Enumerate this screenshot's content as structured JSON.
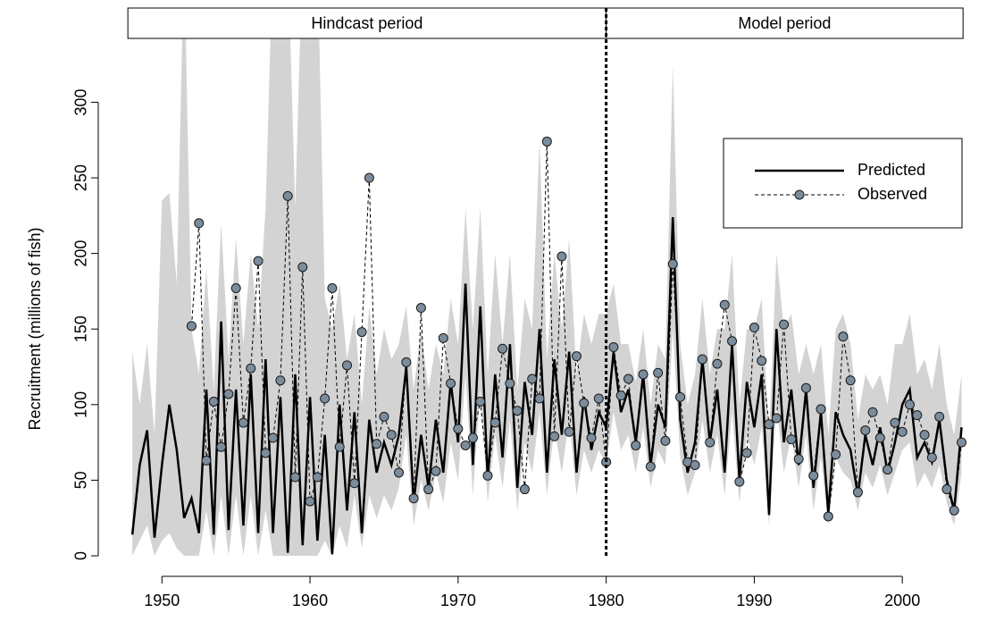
{
  "chart_data": {
    "type": "line",
    "ylabel": "Recruitment (millions of fish)",
    "xlim": [
      1945.7,
      2005.9
    ],
    "ylim": [
      -13.6,
      344
    ],
    "xticks": [
      1950,
      1960,
      1970,
      1980,
      1990,
      2000
    ],
    "yticks": [
      0,
      50,
      100,
      150,
      200,
      250,
      300
    ],
    "legend": "upper right",
    "periods": [
      {
        "label": "Hindcast period",
        "range": [
          1947.7,
          1980
        ]
      },
      {
        "label": "Model period",
        "range": [
          1980,
          2004.1
        ]
      }
    ],
    "vline": 1980,
    "x": [
      1948,
      1948.5,
      1949,
      1949.5,
      1950,
      1950.5,
      1951,
      1951.5,
      1952,
      1952.5,
      1953,
      1953.5,
      1954,
      1954.5,
      1955,
      1955.5,
      1956,
      1956.5,
      1957,
      1957.5,
      1958,
      1958.5,
      1959,
      1959.5,
      1960,
      1960.5,
      1961,
      1961.5,
      1962,
      1962.5,
      1963,
      1963.5,
      1964,
      1964.5,
      1965,
      1965.5,
      1966,
      1966.5,
      1967,
      1967.5,
      1968,
      1968.5,
      1969,
      1969.5,
      1970,
      1970.5,
      1971,
      1971.5,
      1972,
      1972.5,
      1973,
      1973.5,
      1974,
      1974.5,
      1975,
      1975.5,
      1976,
      1976.5,
      1977,
      1977.5,
      1978,
      1978.5,
      1979,
      1979.5,
      1980,
      1980.5,
      1981,
      1981.5,
      1982,
      1982.5,
      1983,
      1983.5,
      1984,
      1984.5,
      1985,
      1985.5,
      1986,
      1986.5,
      1987,
      1987.5,
      1988,
      1988.5,
      1989,
      1989.5,
      1990,
      1990.5,
      1991,
      1991.5,
      1992,
      1992.5,
      1993,
      1993.5,
      1994,
      1994.5,
      1995,
      1995.5,
      1996,
      1996.5,
      1997,
      1997.5,
      1998,
      1998.5,
      1999,
      1999.5,
      2000,
      2000.5,
      2001,
      2001.5,
      2002,
      2002.5,
      2003,
      2003.5,
      2004
    ],
    "band": {
      "color": "#d3d3d3",
      "upper": [
        135,
        100,
        140,
        80,
        235,
        240,
        180,
        400,
        150,
        120,
        190,
        110,
        220,
        130,
        210,
        140,
        200,
        150,
        230,
        400,
        400,
        400,
        230,
        400,
        400,
        400,
        170,
        150,
        180,
        130,
        160,
        100,
        165,
        120,
        150,
        130,
        140,
        165,
        110,
        150,
        110,
        140,
        120,
        170,
        140,
        230,
        150,
        230,
        120,
        200,
        140,
        200,
        110,
        170,
        150,
        275,
        130,
        200,
        150,
        210,
        120,
        160,
        140,
        160,
        160,
        180,
        140,
        140,
        115,
        150,
        100,
        140,
        130,
        325,
        140,
        100,
        120,
        170,
        120,
        150,
        150,
        200,
        100,
        150,
        150,
        170,
        80,
        200,
        150,
        160,
        120,
        140,
        120,
        140,
        80,
        150,
        160,
        140,
        90,
        120,
        110,
        120,
        100,
        140,
        140,
        160,
        120,
        130,
        110,
        140,
        100,
        80,
        120
      ],
      "lower": [
        0,
        10,
        20,
        0,
        10,
        15,
        5,
        0,
        0,
        0,
        30,
        0,
        40,
        0,
        40,
        0,
        40,
        0,
        30,
        0,
        0,
        0,
        0,
        0,
        0,
        0,
        10,
        0,
        20,
        5,
        40,
        5,
        40,
        25,
        40,
        30,
        45,
        80,
        20,
        50,
        30,
        55,
        35,
        75,
        50,
        120,
        40,
        110,
        35,
        80,
        45,
        90,
        30,
        75,
        55,
        95,
        40,
        85,
        55,
        90,
        40,
        70,
        55,
        70,
        60,
        95,
        70,
        80,
        55,
        85,
        45,
        70,
        60,
        150,
        65,
        40,
        55,
        90,
        55,
        80,
        40,
        95,
        35,
        80,
        60,
        85,
        20,
        100,
        55,
        80,
        45,
        80,
        30,
        65,
        20,
        65,
        55,
        50,
        30,
        55,
        45,
        60,
        40,
        55,
        70,
        75,
        45,
        55,
        45,
        60,
        35,
        20,
        55
      ]
    },
    "series": [
      {
        "name": "Predicted",
        "color": "#000000",
        "values": [
          14,
          60,
          83,
          12,
          60,
          100,
          70,
          25,
          38,
          15,
          110,
          14,
          155,
          17,
          110,
          20,
          120,
          15,
          130,
          15,
          105,
          2,
          120,
          7,
          105,
          10,
          80,
          1,
          100,
          30,
          95,
          15,
          90,
          55,
          75,
          60,
          80,
          125,
          35,
          80,
          45,
          90,
          55,
          115,
          75,
          180,
          60,
          165,
          50,
          120,
          65,
          140,
          45,
          115,
          80,
          150,
          55,
          130,
          80,
          135,
          55,
          105,
          70,
          95,
          85,
          135,
          95,
          110,
          75,
          120,
          60,
          100,
          85,
          224,
          90,
          55,
          75,
          130,
          75,
          110,
          55,
          140,
          50,
          115,
          85,
          120,
          27,
          150,
          75,
          110,
          60,
          110,
          45,
          95,
          28,
          95,
          80,
          70,
          40,
          80,
          60,
          85,
          55,
          75,
          100,
          110,
          65,
          75,
          62,
          90,
          50,
          30,
          85
        ]
      },
      {
        "name": "Observed",
        "color": "#7b8c9c",
        "values": [
          null,
          null,
          null,
          null,
          null,
          null,
          null,
          null,
          152,
          220,
          63,
          102,
          72,
          107,
          177,
          88,
          124,
          195,
          68,
          78,
          116,
          238,
          52,
          191,
          36,
          52,
          104,
          177,
          72,
          126,
          48,
          148,
          250,
          74,
          92,
          80,
          55,
          128,
          38,
          164,
          44,
          56,
          144,
          114,
          84,
          73,
          78,
          102,
          53,
          88,
          137,
          114,
          96,
          44,
          117,
          104,
          274,
          79,
          198,
          82,
          132,
          101,
          78,
          104,
          62,
          138,
          106,
          117,
          73,
          120,
          59,
          121,
          76,
          193,
          105,
          62,
          60,
          130,
          75,
          127,
          166,
          142,
          49,
          68,
          151,
          129,
          87,
          91,
          153,
          77,
          64,
          111,
          53,
          97,
          26,
          67,
          145,
          116,
          42,
          83,
          95,
          78,
          57,
          88,
          82,
          100,
          93,
          80,
          65,
          92,
          44,
          30,
          75
        ]
      }
    ]
  }
}
